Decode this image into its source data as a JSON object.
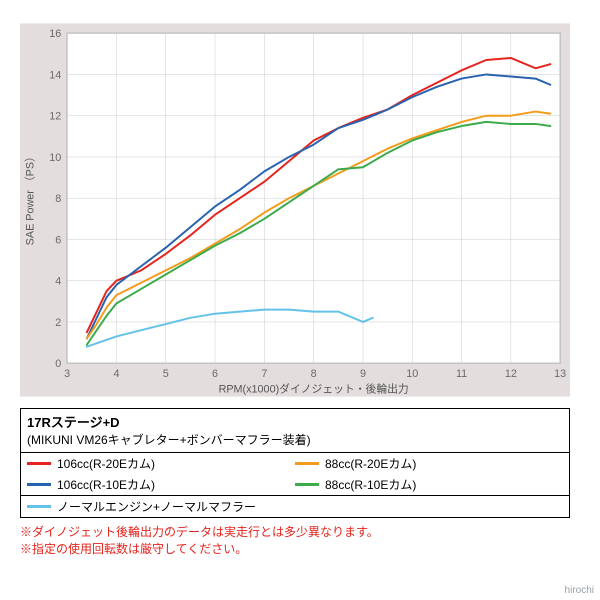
{
  "chart": {
    "type": "line",
    "xlabel": "RPM(x1000)ダイノジェット・後輪出力",
    "ylabel": "SAE Power （PS）",
    "label_fontsize": 11,
    "xlim": [
      3,
      13
    ],
    "ylim": [
      0,
      16
    ],
    "xtick_step": 1,
    "ytick_step": 2,
    "background_color": "#e3dedd",
    "plot_bg": "#ffffff",
    "grid_color": "#c9ccce",
    "border_color": "#999999",
    "tick_color": "#6a6a6a",
    "line_width": 2,
    "series": [
      {
        "name": "106cc(R-20Eカム)",
        "color": "#e6231c",
        "points": [
          [
            3.4,
            1.5
          ],
          [
            3.6,
            2.5
          ],
          [
            3.8,
            3.5
          ],
          [
            4,
            4.0
          ],
          [
            4.5,
            4.5
          ],
          [
            5,
            5.3
          ],
          [
            5.5,
            6.2
          ],
          [
            6,
            7.2
          ],
          [
            6.5,
            8.0
          ],
          [
            7,
            8.8
          ],
          [
            7.5,
            9.8
          ],
          [
            8,
            10.8
          ],
          [
            8.5,
            11.4
          ],
          [
            9,
            11.9
          ],
          [
            9.5,
            12.3
          ],
          [
            10,
            13.0
          ],
          [
            10.5,
            13.6
          ],
          [
            11,
            14.2
          ],
          [
            11.5,
            14.7
          ],
          [
            12,
            14.8
          ],
          [
            12.5,
            14.3
          ],
          [
            12.8,
            14.5
          ]
        ]
      },
      {
        "name": "106cc(R-10Eカム)",
        "color": "#2862b0",
        "points": [
          [
            3.4,
            1.2
          ],
          [
            3.6,
            2.2
          ],
          [
            3.8,
            3.2
          ],
          [
            4,
            3.8
          ],
          [
            4.5,
            4.7
          ],
          [
            5,
            5.6
          ],
          [
            5.5,
            6.6
          ],
          [
            6,
            7.6
          ],
          [
            6.5,
            8.4
          ],
          [
            7,
            9.3
          ],
          [
            7.5,
            10.0
          ],
          [
            8,
            10.6
          ],
          [
            8.5,
            11.4
          ],
          [
            9,
            11.8
          ],
          [
            9.5,
            12.3
          ],
          [
            10,
            12.9
          ],
          [
            10.5,
            13.4
          ],
          [
            11,
            13.8
          ],
          [
            11.5,
            14.0
          ],
          [
            12,
            13.9
          ],
          [
            12.5,
            13.8
          ],
          [
            12.8,
            13.5
          ]
        ]
      },
      {
        "name": "88cc(R-20Eカム)",
        "color": "#f39b1b",
        "points": [
          [
            3.4,
            1.2
          ],
          [
            3.6,
            1.9
          ],
          [
            3.8,
            2.7
          ],
          [
            4,
            3.3
          ],
          [
            4.5,
            3.9
          ],
          [
            5,
            4.5
          ],
          [
            5.5,
            5.1
          ],
          [
            6,
            5.8
          ],
          [
            6.5,
            6.5
          ],
          [
            7,
            7.3
          ],
          [
            7.5,
            8.0
          ],
          [
            8,
            8.6
          ],
          [
            8.5,
            9.2
          ],
          [
            9,
            9.8
          ],
          [
            9.5,
            10.4
          ],
          [
            10,
            10.9
          ],
          [
            10.5,
            11.3
          ],
          [
            11,
            11.7
          ],
          [
            11.5,
            12.0
          ],
          [
            12,
            12.0
          ],
          [
            12.5,
            12.2
          ],
          [
            12.8,
            12.1
          ]
        ]
      },
      {
        "name": "88cc(R-10Eカム)",
        "color": "#3bab4c",
        "points": [
          [
            3.4,
            0.9
          ],
          [
            3.6,
            1.6
          ],
          [
            3.8,
            2.3
          ],
          [
            4,
            2.9
          ],
          [
            4.5,
            3.6
          ],
          [
            5,
            4.3
          ],
          [
            5.5,
            5.0
          ],
          [
            6,
            5.7
          ],
          [
            6.5,
            6.3
          ],
          [
            7,
            7.0
          ],
          [
            7.5,
            7.8
          ],
          [
            8,
            8.6
          ],
          [
            8.5,
            9.4
          ],
          [
            9,
            9.5
          ],
          [
            9.5,
            10.2
          ],
          [
            10,
            10.8
          ],
          [
            10.5,
            11.2
          ],
          [
            11,
            11.5
          ],
          [
            11.5,
            11.7
          ],
          [
            12,
            11.6
          ],
          [
            12.5,
            11.6
          ],
          [
            12.8,
            11.5
          ]
        ]
      },
      {
        "name": "ノーマルエンジン+ノーマルマフラー",
        "color": "#62c2e9",
        "points": [
          [
            3.4,
            0.8
          ],
          [
            4,
            1.3
          ],
          [
            4.5,
            1.6
          ],
          [
            5,
            1.9
          ],
          [
            5.5,
            2.2
          ],
          [
            6,
            2.4
          ],
          [
            6.5,
            2.5
          ],
          [
            7,
            2.6
          ],
          [
            7.5,
            2.6
          ],
          [
            8,
            2.5
          ],
          [
            8.5,
            2.5
          ],
          [
            9,
            2.0
          ],
          [
            9.2,
            2.2
          ]
        ]
      }
    ]
  },
  "info": {
    "title": "17Rステージ+D",
    "subtitle": "(MIKUNI VM26キャブレター+ボンバーマフラー装着)",
    "legend_rows": [
      [
        {
          "color": "#e6231c",
          "label": "106cc(R-20Eカム)"
        },
        {
          "color": "#f39b1b",
          "label": "88cc(R-20Eカム)"
        }
      ],
      [
        {
          "color": "#2862b0",
          "label": "106cc(R-10Eカム)"
        },
        {
          "color": "#3bab4c",
          "label": "88cc(R-10Eカム)"
        }
      ]
    ],
    "legend_row2": [
      {
        "color": "#62c2e9",
        "label": "ノーマルエンジン+ノーマルマフラー"
      }
    ]
  },
  "notes": {
    "line1": "※ダイノジェット後輪出力のデータは実走行とは多少異なります。",
    "line2": "※指定の使用回転数は厳守してください。"
  },
  "credit": "hirochi"
}
